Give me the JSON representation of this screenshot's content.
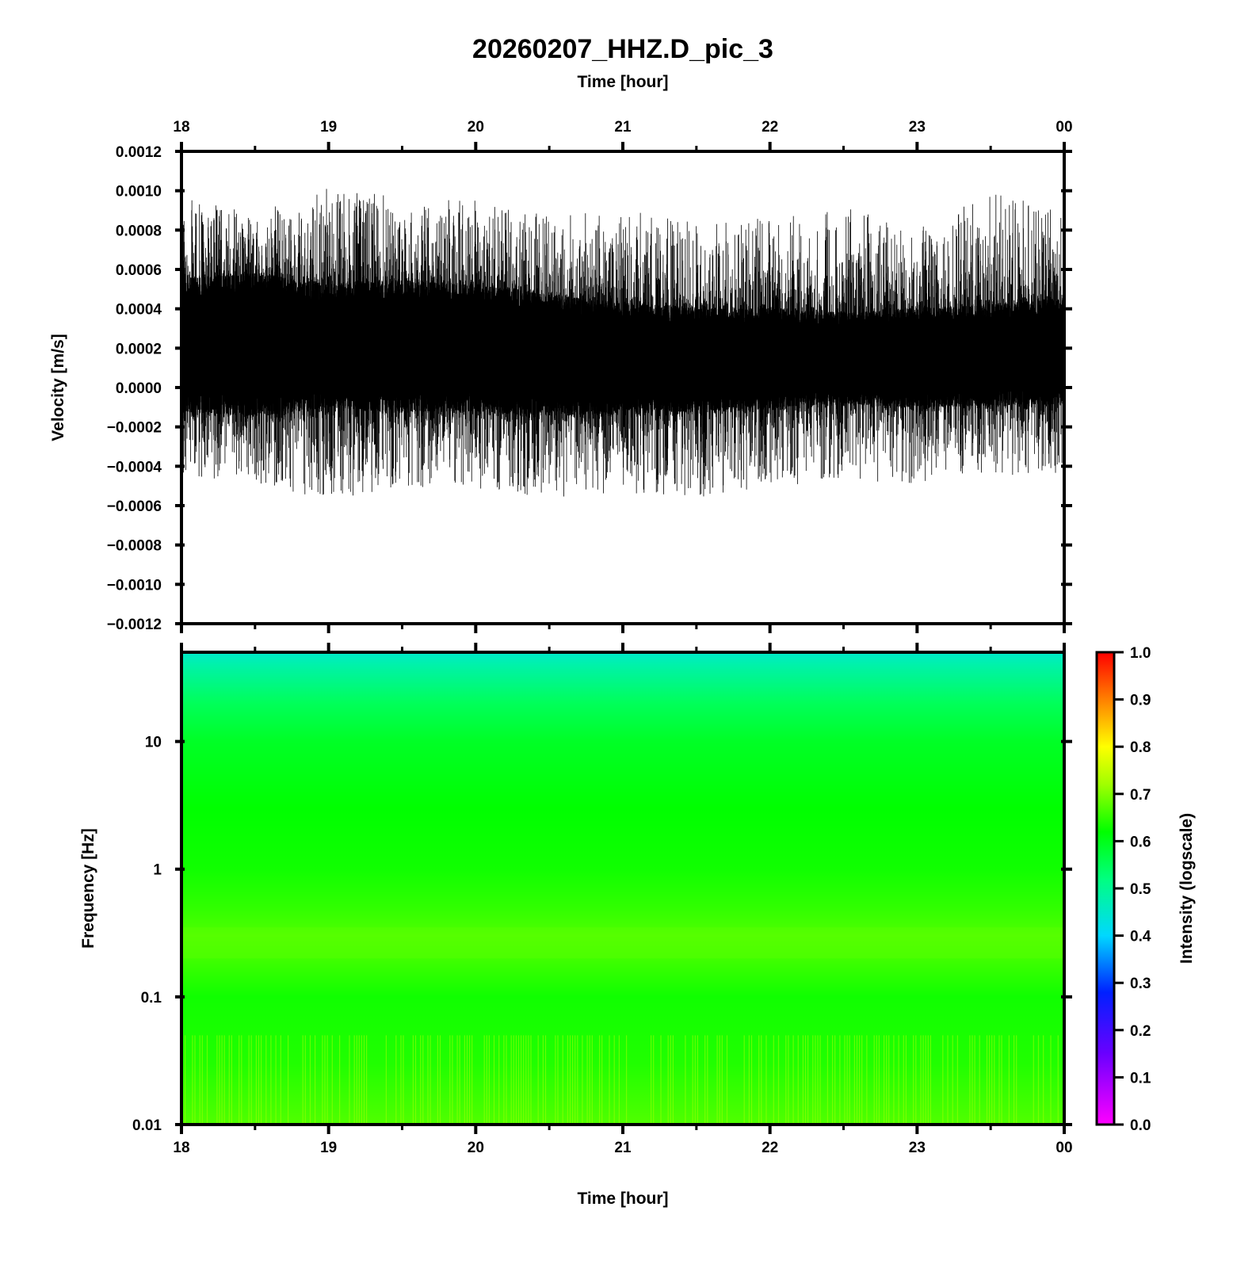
{
  "figure": {
    "title": "20260207_HHZ.D_pic_3"
  },
  "chart_data": [
    {
      "type": "line",
      "name": "waveform",
      "title": "20260207_HHZ.D_pic_3",
      "xlabel_top": "Time [hour]",
      "ylabel": "Velocity [m/s]",
      "x_tick_labels": [
        "18",
        "19",
        "20",
        "21",
        "22",
        "23",
        "00"
      ],
      "xlim_hours": [
        18,
        24
      ],
      "ylim": [
        -0.0012,
        0.0012
      ],
      "y_tick_labels": [
        "0.0012",
        "0.0010",
        "0.0008",
        "0.0006",
        "0.0004",
        "0.0002",
        "0.0000",
        "−0.0002",
        "−0.0004",
        "−0.0006",
        "−0.0008",
        "−0.0010",
        "−0.0012"
      ],
      "y_tick_values": [
        0.0012,
        0.001,
        0.0008,
        0.0006,
        0.0004,
        0.0002,
        0.0,
        -0.0002,
        -0.0004,
        -0.0006,
        -0.0008,
        -0.001,
        -0.0012
      ],
      "series_color": "#000000",
      "envelope": {
        "time_hours": [
          18.0,
          18.5,
          19.0,
          19.5,
          20.0,
          20.5,
          21.0,
          21.5,
          22.0,
          22.5,
          23.0,
          23.5,
          24.0
        ],
        "upper": [
          0.00055,
          0.00058,
          0.00052,
          0.00054,
          0.00052,
          0.00047,
          0.00043,
          0.0004,
          0.0004,
          0.00038,
          0.0004,
          0.00042,
          0.00045
        ],
        "lower": [
          -0.00012,
          -0.00014,
          -0.0001,
          -0.00012,
          -0.00012,
          -0.00014,
          -0.00013,
          -0.00012,
          -0.0001,
          -8e-05,
          -0.0001,
          -9e-05,
          -8e-05
        ],
        "spikes_max": [
          0.00098,
          0.00088,
          0.00104,
          0.00096,
          0.00095,
          0.00088,
          0.0009,
          0.00085,
          0.00086,
          0.00092,
          0.00082,
          0.00099,
          0.0009
        ],
        "spikes_min": [
          -0.00045,
          -0.00048,
          -0.00058,
          -0.0005,
          -0.00052,
          -0.00057,
          -0.00054,
          -0.00056,
          -0.0005,
          -0.00048,
          -0.00049,
          -0.00048,
          -0.00043
        ]
      }
    },
    {
      "type": "heatmap",
      "name": "spectrogram",
      "xlabel": "Time [hour]",
      "ylabel": "Frequency [Hz]",
      "x_tick_labels": [
        "18",
        "19",
        "20",
        "21",
        "22",
        "23",
        "00"
      ],
      "xlim_hours": [
        18,
        24
      ],
      "y_scale": "log",
      "ylim_hz": [
        0.01,
        50
      ],
      "y_tick_labels": [
        "10",
        "1",
        "0.1",
        "0.01"
      ],
      "y_tick_values": [
        10,
        1,
        0.1,
        0.01
      ],
      "intensity_profile": {
        "frequency_hz": [
          50,
          40,
          20,
          10,
          3,
          1,
          0.5,
          0.3,
          0.2,
          0.1,
          0.03,
          0.01
        ],
        "intensity": [
          0.45,
          0.48,
          0.55,
          0.59,
          0.62,
          0.63,
          0.65,
          0.67,
          0.66,
          0.63,
          0.64,
          0.67
        ]
      },
      "colorbar": {
        "label": "Intensity (logscale)",
        "range": [
          0.0,
          1.0
        ],
        "tick_labels": [
          "1.0",
          "0.9",
          "0.8",
          "0.7",
          "0.6",
          "0.5",
          "0.4",
          "0.3",
          "0.2",
          "0.1",
          "0.0"
        ],
        "tick_values": [
          1.0,
          0.9,
          0.8,
          0.7,
          0.6,
          0.5,
          0.4,
          0.3,
          0.2,
          0.1,
          0.0
        ],
        "colormap_stops": [
          {
            "value": 0.0,
            "color": "#ff00ff"
          },
          {
            "value": 0.15,
            "color": "#6a00ff"
          },
          {
            "value": 0.28,
            "color": "#0020ff"
          },
          {
            "value": 0.4,
            "color": "#00d8ff"
          },
          {
            "value": 0.52,
            "color": "#00ff80"
          },
          {
            "value": 0.62,
            "color": "#00ff00"
          },
          {
            "value": 0.72,
            "color": "#a0ff00"
          },
          {
            "value": 0.8,
            "color": "#ffff00"
          },
          {
            "value": 0.9,
            "color": "#ff8000"
          },
          {
            "value": 1.0,
            "color": "#ff0000"
          }
        ]
      }
    }
  ]
}
